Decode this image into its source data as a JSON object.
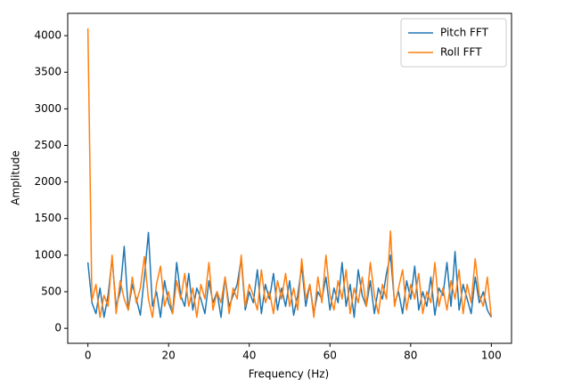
{
  "chart_data": {
    "type": "line",
    "xlabel": "Frequency (Hz)",
    "ylabel": "Amplitude",
    "x": [
      0,
      1,
      2,
      3,
      4,
      5,
      6,
      7,
      8,
      9,
      10,
      11,
      12,
      13,
      14,
      15,
      16,
      17,
      18,
      19,
      20,
      21,
      22,
      23,
      24,
      25,
      26,
      27,
      28,
      29,
      30,
      31,
      32,
      33,
      34,
      35,
      36,
      37,
      38,
      39,
      40,
      41,
      42,
      43,
      44,
      45,
      46,
      47,
      48,
      49,
      50,
      51,
      52,
      53,
      54,
      55,
      56,
      57,
      58,
      59,
      60,
      61,
      62,
      63,
      64,
      65,
      66,
      67,
      68,
      69,
      70,
      71,
      72,
      73,
      74,
      75,
      76,
      77,
      78,
      79,
      80,
      81,
      82,
      83,
      84,
      85,
      86,
      87,
      88,
      89,
      90,
      91,
      92,
      93,
      94,
      95,
      96,
      97,
      98,
      99,
      100
    ],
    "series": [
      {
        "name": "Pitch FFT",
        "color": "#1f77b4",
        "values": [
          900,
          350,
          200,
          550,
          150,
          450,
          950,
          300,
          500,
          1120,
          250,
          600,
          400,
          180,
          700,
          1310,
          300,
          500,
          150,
          650,
          350,
          200,
          900,
          450,
          300,
          750,
          250,
          550,
          400,
          200,
          650,
          350,
          500,
          150,
          700,
          300,
          450,
          600,
          950,
          250,
          500,
          350,
          800,
          200,
          600,
          400,
          750,
          250,
          550,
          300,
          650,
          180,
          450,
          850,
          300,
          600,
          200,
          500,
          400,
          700,
          250,
          550,
          350,
          900,
          300,
          600,
          150,
          800,
          450,
          300,
          650,
          200,
          550,
          400,
          750,
          1000,
          350,
          500,
          200,
          650,
          400,
          850,
          250,
          500,
          300,
          700,
          180,
          550,
          450,
          900,
          300,
          1050,
          250,
          600,
          400,
          200,
          700,
          350,
          500,
          250,
          150
        ]
      },
      {
        "name": "Roll FFT",
        "color": "#ff7f0e",
        "values": [
          4100,
          380,
          600,
          150,
          450,
          300,
          1000,
          200,
          650,
          400,
          250,
          700,
          350,
          550,
          980,
          400,
          150,
          600,
          850,
          300,
          500,
          200,
          650,
          400,
          750,
          300,
          550,
          150,
          600,
          400,
          900,
          250,
          500,
          350,
          700,
          200,
          550,
          400,
          1000,
          300,
          600,
          450,
          250,
          800,
          350,
          500,
          200,
          650,
          400,
          750,
          300,
          550,
          250,
          950,
          400,
          600,
          150,
          700,
          350,
          1000,
          450,
          250,
          650,
          400,
          800,
          200,
          550,
          350,
          700,
          300,
          900,
          450,
          200,
          600,
          400,
          1330,
          300,
          550,
          800,
          250,
          600,
          400,
          750,
          200,
          500,
          350,
          900,
          300,
          550,
          250,
          650,
          400,
          800,
          200,
          600,
          350,
          950,
          450,
          300,
          700,
          150
        ]
      }
    ],
    "xlim": [
      -5,
      105
    ],
    "ylim": [
      -205,
      4305
    ],
    "xticks": [
      0,
      20,
      40,
      60,
      80,
      100
    ],
    "yticks": [
      0,
      500,
      1000,
      1500,
      2000,
      2500,
      3000,
      3500,
      4000
    ],
    "legend": "upper right"
  }
}
